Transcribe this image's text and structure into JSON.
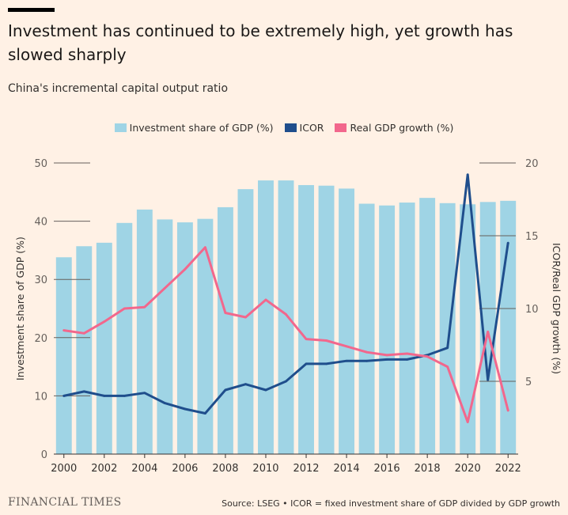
{
  "header": {
    "title": "Investment has continued to be extremely high, yet growth has slowed sharply",
    "subtitle": "China's incremental capital output ratio"
  },
  "footer": {
    "logo": "FINANCIAL TIMES",
    "source": "Source: LSEG • ICOR = fixed investment share of GDP divided by GDP growth"
  },
  "colors": {
    "background": "#fff1e5",
    "investment": "#9fd4e5",
    "icor": "#1f4e8c",
    "gdp_growth": "#f2678c"
  },
  "chart_data": {
    "type": "bar",
    "years": [
      2000,
      2001,
      2002,
      2003,
      2004,
      2005,
      2006,
      2007,
      2008,
      2009,
      2010,
      2011,
      2012,
      2013,
      2014,
      2015,
      2016,
      2017,
      2018,
      2019,
      2020,
      2021,
      2022
    ],
    "xticks": [
      "2000",
      "2002",
      "2004",
      "2006",
      "2008",
      "2010",
      "2012",
      "2014",
      "2016",
      "2018",
      "2020",
      "2022"
    ],
    "series": [
      {
        "name": "Investment share of GDP (%)",
        "type": "bar",
        "axis": "left",
        "values": [
          33.8,
          35.7,
          36.3,
          39.7,
          42.0,
          40.3,
          39.8,
          40.4,
          42.4,
          45.5,
          47.0,
          47.0,
          46.2,
          46.1,
          45.6,
          43.0,
          42.7,
          43.2,
          44.0,
          43.1,
          42.9,
          43.3,
          43.5
        ]
      },
      {
        "name": "ICOR",
        "type": "line",
        "axis": "right",
        "values": [
          4.0,
          4.3,
          4.0,
          4.0,
          4.2,
          3.5,
          3.1,
          2.8,
          4.4,
          4.8,
          4.4,
          5.0,
          6.2,
          6.2,
          6.4,
          6.4,
          6.5,
          6.5,
          6.8,
          7.3,
          19.2,
          5.1,
          14.5
        ]
      },
      {
        "name": "Real GDP growth (%)",
        "type": "line",
        "axis": "right",
        "values": [
          8.5,
          8.3,
          9.1,
          10.0,
          10.1,
          11.4,
          12.7,
          14.2,
          9.7,
          9.4,
          10.6,
          9.6,
          7.9,
          7.8,
          7.4,
          7.0,
          6.8,
          6.9,
          6.7,
          6.0,
          2.2,
          8.4,
          3.0
        ]
      }
    ],
    "left_axis": {
      "label": "Investment share of GDP (%)",
      "ylim": [
        0,
        50
      ],
      "ticks": [
        "0",
        "10",
        "20",
        "30",
        "40",
        "50"
      ]
    },
    "right_axis": {
      "label": "ICOR/Real GDP growth (%)",
      "ylim": [
        0,
        20
      ],
      "ticks": [
        "5",
        "10",
        "15",
        "20"
      ]
    },
    "legend": "top-center"
  }
}
